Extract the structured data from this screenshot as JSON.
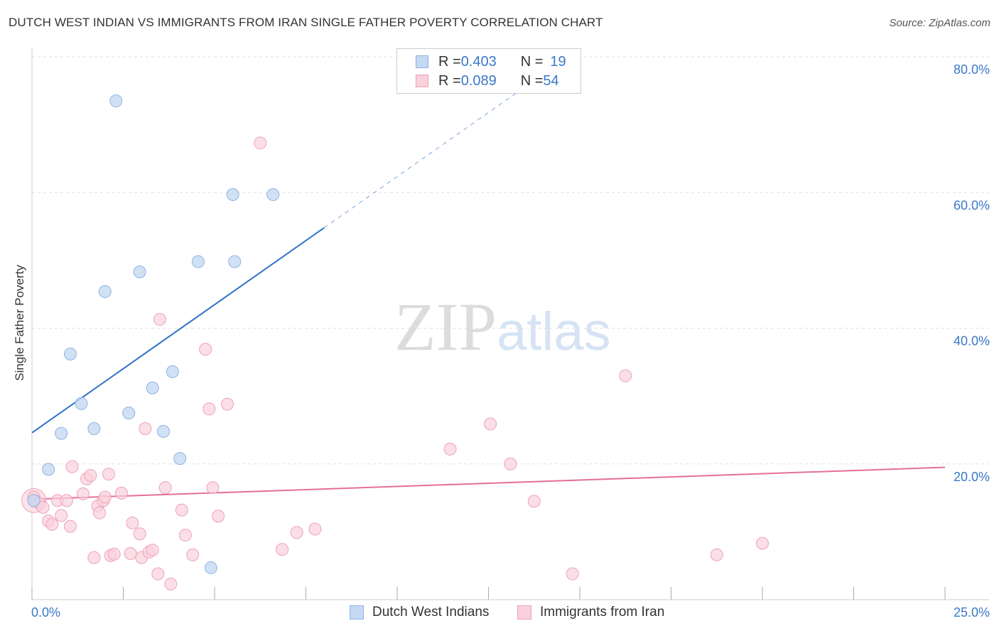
{
  "header": {
    "title": "DUTCH WEST INDIAN VS IMMIGRANTS FROM IRAN SINGLE FATHER POVERTY CORRELATION CHART",
    "source": "Source: ZipAtlas.com"
  },
  "watermark": {
    "zip": "ZIP",
    "atlas": "atlas"
  },
  "legend": {
    "rows": [
      {
        "r_label": "R = ",
        "r_value": "0.403",
        "n_label": "N = ",
        "n_value": "19"
      },
      {
        "r_label": "R = ",
        "r_value": "0.089",
        "n_label": "N = ",
        "n_value": "54"
      }
    ],
    "bottom": [
      "Dutch West Indians",
      "Immigrants from Iran"
    ]
  },
  "colors": {
    "blue_fill": "#c5d9f3",
    "blue_stroke": "#8fb3e3",
    "blue_line": "#2f72c7",
    "pink_fill": "#f9d0dc",
    "pink_stroke": "#eda2b8",
    "pink_line": "#e56f98",
    "axis_label": "#3a78c9",
    "grid": "#e0e0e0"
  },
  "chart_data": {
    "type": "scatter",
    "title": "DUTCH WEST INDIAN VS IMMIGRANTS FROM IRAN SINGLE FATHER POVERTY CORRELATION CHART",
    "xlabel": "",
    "ylabel": "Single Father Poverty",
    "xlim": [
      0,
      25
    ],
    "ylim": [
      0,
      80
    ],
    "x_ticks": [
      0,
      2.5,
      5,
      7.5,
      10,
      12.5,
      15,
      17.5,
      20,
      22.5,
      25
    ],
    "x_tick_labels": [
      "0.0%",
      "25.0%"
    ],
    "y_ticks": [
      20,
      40,
      60,
      80
    ],
    "y_tick_labels": [
      "20.0%",
      "40.0%",
      "60.0%",
      "80.0%"
    ],
    "legend_position": "top-center",
    "series": [
      {
        "name": "Dutch West Indians",
        "r": 0.403,
        "n": 19,
        "points": [
          [
            0.05,
            14.6
          ],
          [
            0.45,
            19.2
          ],
          [
            0.8,
            24.5
          ],
          [
            1.05,
            36.2
          ],
          [
            1.35,
            28.9
          ],
          [
            1.7,
            25.2
          ],
          [
            2.0,
            45.4
          ],
          [
            2.3,
            73.5
          ],
          [
            2.65,
            27.5
          ],
          [
            2.95,
            48.3
          ],
          [
            3.3,
            31.2
          ],
          [
            3.6,
            24.8
          ],
          [
            3.85,
            33.6
          ],
          [
            4.05,
            20.8
          ],
          [
            4.55,
            49.8
          ],
          [
            4.9,
            4.7
          ],
          [
            5.5,
            59.7
          ],
          [
            5.55,
            49.8
          ],
          [
            6.6,
            59.7
          ]
        ],
        "trend": {
          "x0": 0,
          "y0": 24.6,
          "x1": 8.0,
          "y1": 54.8,
          "dashed_to_x": 14.2,
          "dashed_to_y": 78.2
        }
      },
      {
        "name": "Immigrants from Iran",
        "r": 0.089,
        "n": 54,
        "points": [
          [
            0.05,
            15.1
          ],
          [
            0.1,
            14.5
          ],
          [
            0.2,
            14.2
          ],
          [
            0.3,
            13.6
          ],
          [
            0.45,
            11.6
          ],
          [
            0.55,
            11.1
          ],
          [
            0.7,
            14.6
          ],
          [
            0.8,
            12.4
          ],
          [
            0.95,
            14.6
          ],
          [
            1.05,
            10.8
          ],
          [
            1.1,
            19.6
          ],
          [
            1.4,
            15.6
          ],
          [
            1.5,
            17.8
          ],
          [
            1.6,
            18.3
          ],
          [
            1.7,
            6.2
          ],
          [
            1.8,
            13.8
          ],
          [
            1.85,
            12.8
          ],
          [
            1.95,
            14.6
          ],
          [
            2.0,
            15.1
          ],
          [
            2.1,
            18.5
          ],
          [
            2.15,
            6.5
          ],
          [
            2.25,
            6.7
          ],
          [
            2.45,
            15.7
          ],
          [
            2.7,
            6.8
          ],
          [
            2.75,
            11.3
          ],
          [
            2.95,
            9.7
          ],
          [
            3.0,
            6.2
          ],
          [
            3.1,
            25.2
          ],
          [
            3.2,
            7.0
          ],
          [
            3.3,
            7.3
          ],
          [
            3.45,
            3.8
          ],
          [
            3.5,
            41.3
          ],
          [
            3.65,
            16.5
          ],
          [
            3.8,
            2.3
          ],
          [
            4.1,
            13.2
          ],
          [
            4.2,
            9.5
          ],
          [
            4.4,
            6.6
          ],
          [
            4.75,
            36.9
          ],
          [
            4.85,
            28.1
          ],
          [
            4.95,
            16.5
          ],
          [
            5.1,
            12.3
          ],
          [
            5.35,
            28.8
          ],
          [
            6.25,
            67.3
          ],
          [
            6.85,
            7.4
          ],
          [
            7.25,
            9.9
          ],
          [
            7.75,
            10.4
          ],
          [
            11.45,
            22.2
          ],
          [
            12.55,
            25.9
          ],
          [
            13.1,
            20.0
          ],
          [
            13.75,
            14.5
          ],
          [
            14.8,
            3.8
          ],
          [
            16.25,
            33.0
          ],
          [
            18.75,
            6.6
          ],
          [
            20.0,
            8.3
          ]
        ],
        "trend": {
          "x0": 0,
          "y0": 14.8,
          "x1": 25,
          "y1": 19.5
        }
      }
    ]
  }
}
